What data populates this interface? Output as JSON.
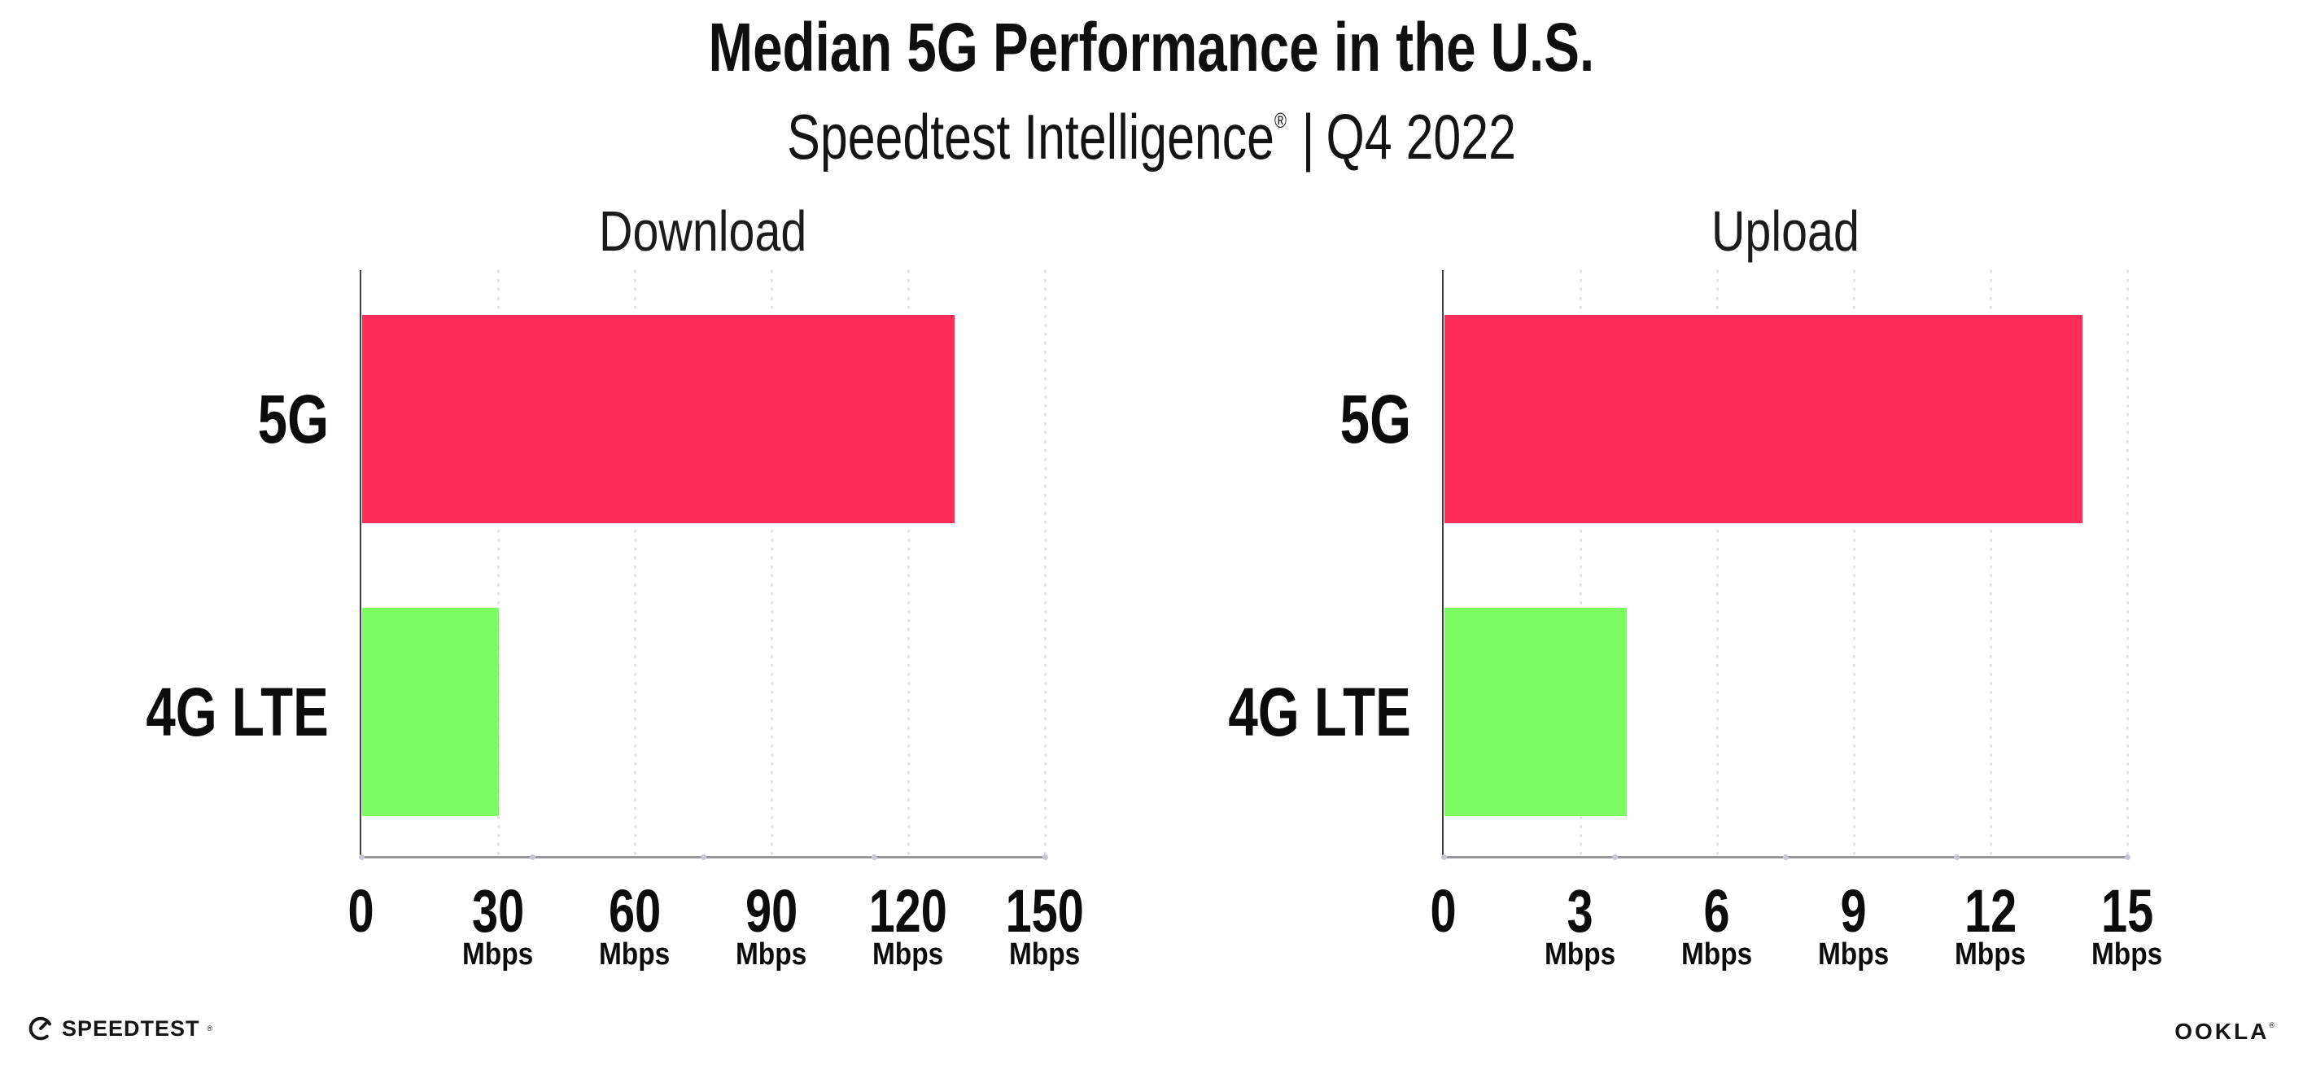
{
  "header": {
    "title": "Median 5G Performance in the U.S.",
    "subtitle_brand": "Speedtest Intelligence",
    "subtitle_trademark": "®",
    "subtitle_separator": "|",
    "subtitle_period": "Q4 2022"
  },
  "chart_data": [
    {
      "type": "bar",
      "orientation": "horizontal",
      "title": "Download",
      "categories": [
        "5G",
        "4G LTE"
      ],
      "values": [
        130,
        30
      ],
      "value_unit": "Mbps",
      "xlim": [
        0,
        150
      ],
      "xticks": [
        0,
        30,
        60,
        90,
        120,
        150
      ],
      "tick_unit": "Mbps",
      "bar_colors": [
        "#FD2D58",
        "#7DFC64"
      ],
      "grid": "vertical-dotted",
      "legend": "none"
    },
    {
      "type": "bar",
      "orientation": "horizontal",
      "title": "Upload",
      "categories": [
        "5G",
        "4G LTE"
      ],
      "values": [
        14,
        4
      ],
      "value_unit": "Mbps",
      "xlim": [
        0,
        15
      ],
      "xticks": [
        0,
        3,
        6,
        9,
        12,
        15
      ],
      "tick_unit": "Mbps",
      "bar_colors": [
        "#FD2D58",
        "#7DFC64"
      ],
      "grid": "vertical-dotted",
      "legend": "none"
    }
  ],
  "colors": {
    "bar_5g": "#FD2D58",
    "bar_4g_lte": "#7DFC64",
    "gridline": "#E2E3EC",
    "x_axis": "#96969B",
    "y_axis": "#404147",
    "text": "#0F0F10",
    "background": "#FFFFFF"
  },
  "footer": {
    "speedtest_logo_text": "SPEEDTEST",
    "speedtest_trademark": "®",
    "ookla_logo_text": "OOKLA",
    "ookla_trademark": "®"
  }
}
